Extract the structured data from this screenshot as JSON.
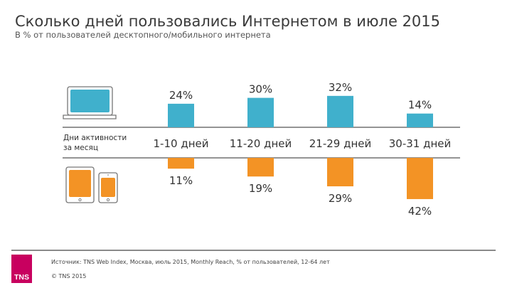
{
  "title": "Сколько дней пользовались Интернетом в июле 2015",
  "subtitle": "В % от пользователей десктопного/мобильного интернета",
  "row_label": [
    "Дни активности",
    "за месяц"
  ],
  "footer": {
    "source": "Источник: TNS Web Index, Москва, июль 2015, Monthly Reach, % от пользователей, 12-64 лет",
    "copyright": "© TNS 2015",
    "logo_text": "TNS"
  },
  "colors": {
    "desktop": "#40b0cc",
    "mobile": "#f39325",
    "axis": "#555555"
  },
  "icons": {
    "desktop": "laptop-icon",
    "mobile": "tablet-phone-icon"
  },
  "chart_data": {
    "type": "bar",
    "title": "Сколько дней пользовались Интернетом в июле 2015",
    "subtitle": "В % от пользователей десктопного/мобильного интернета",
    "xlabel": "Дни активности за месяц",
    "ylabel": "",
    "categories": [
      "1-10 дней",
      "11-20 дней",
      "21-29 дней",
      "30-31 дней"
    ],
    "series": [
      {
        "name": "desktop",
        "values": [
          24,
          30,
          32,
          14
        ],
        "labels": [
          "24%",
          "30%",
          "32%",
          "14%"
        ]
      },
      {
        "name": "mobile",
        "values": [
          11,
          19,
          29,
          42
        ],
        "labels": [
          "11%",
          "19%",
          "29%",
          "42%"
        ]
      }
    ],
    "unit": "%",
    "grid": false,
    "legend": "icons-left"
  }
}
